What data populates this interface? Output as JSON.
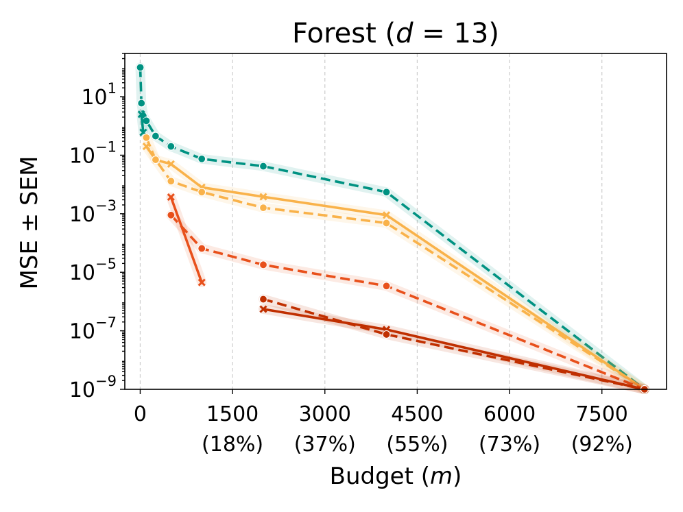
{
  "chart_data": {
    "type": "line",
    "title_prefix": "Forest (",
    "title_var": "d",
    "title_suffix": " = 13)",
    "xlabel_prefix": "Budget (",
    "xlabel_var": "m",
    "xlabel_suffix": ")",
    "ylabel": "MSE ± SEM",
    "yscale": "log",
    "ylim": [
      1e-09,
      300
    ],
    "xlim": [
      -250,
      8550
    ],
    "grid": "x-dashed",
    "xticks": [
      {
        "value": 0,
        "label": "0",
        "pct": ""
      },
      {
        "value": 1500,
        "label": "1500",
        "pct": "(18%)"
      },
      {
        "value": 3000,
        "label": "3000",
        "pct": "(37%)"
      },
      {
        "value": 4500,
        "label": "4500",
        "pct": "(55%)"
      },
      {
        "value": 6000,
        "label": "6000",
        "pct": "(73%)"
      },
      {
        "value": 7500,
        "label": "7500",
        "pct": "(92%)"
      }
    ],
    "yticks": [
      {
        "value": 1e-09,
        "base": "10",
        "exp": "−9"
      },
      {
        "value": 1e-07,
        "base": "10",
        "exp": "−7"
      },
      {
        "value": 1e-05,
        "base": "10",
        "exp": "−5"
      },
      {
        "value": 0.001,
        "base": "10",
        "exp": "−3"
      },
      {
        "value": 0.1,
        "base": "10",
        "exp": "−1"
      },
      {
        "value": 10,
        "base": "10",
        "exp": "1"
      }
    ],
    "series": [
      {
        "color": "#009282",
        "dash": "14 7",
        "marker": "circle",
        "x": [
          1,
          20,
          50,
          100,
          250,
          500,
          1000,
          2000,
          4000,
          8192
        ],
        "y": [
          100,
          6,
          2.2,
          1.5,
          0.45,
          0.2,
          0.075,
          0.042,
          0.0055,
          1e-09
        ]
      },
      {
        "color": "#009282",
        "dash": "",
        "marker": "cross",
        "x": [
          20,
          50
        ],
        "y": [
          2.5,
          0.6
        ]
      },
      {
        "color": "#f9b24a",
        "dash": "",
        "marker": "cross",
        "x": [
          100,
          250,
          500,
          1000,
          2000,
          4000,
          8192
        ],
        "y": [
          0.2,
          0.07,
          0.05,
          0.008,
          0.0038,
          0.0009,
          1e-09
        ]
      },
      {
        "color": "#f9b24a",
        "dash": "14 7",
        "marker": "circle",
        "x": [
          100,
          250,
          500,
          1000,
          2000,
          4000,
          8192
        ],
        "y": [
          0.4,
          0.07,
          0.013,
          0.0055,
          0.0016,
          0.00048,
          1e-09
        ]
      },
      {
        "color": "#e8501b",
        "dash": "14 7",
        "marker": "circle",
        "x": [
          500,
          1000,
          2000,
          4000,
          8192
        ],
        "y": [
          0.0009,
          6.5e-05,
          1.8e-05,
          3.4e-06,
          1e-09
        ]
      },
      {
        "color": "#e8501b",
        "dash": "",
        "marker": "cross",
        "x": [
          500,
          1000
        ],
        "y": [
          0.0037,
          4.5e-06
        ]
      },
      {
        "color": "#c02f00",
        "dash": "",
        "marker": "cross",
        "x": [
          2000,
          4000,
          8192
        ],
        "y": [
          5.5e-07,
          1.1e-07,
          1e-09
        ]
      },
      {
        "color": "#c02f00",
        "dash": "14 7",
        "marker": "circle",
        "x": [
          2000,
          4000,
          8192
        ],
        "y": [
          1.2e-06,
          7.5e-08,
          1e-09
        ]
      }
    ]
  }
}
